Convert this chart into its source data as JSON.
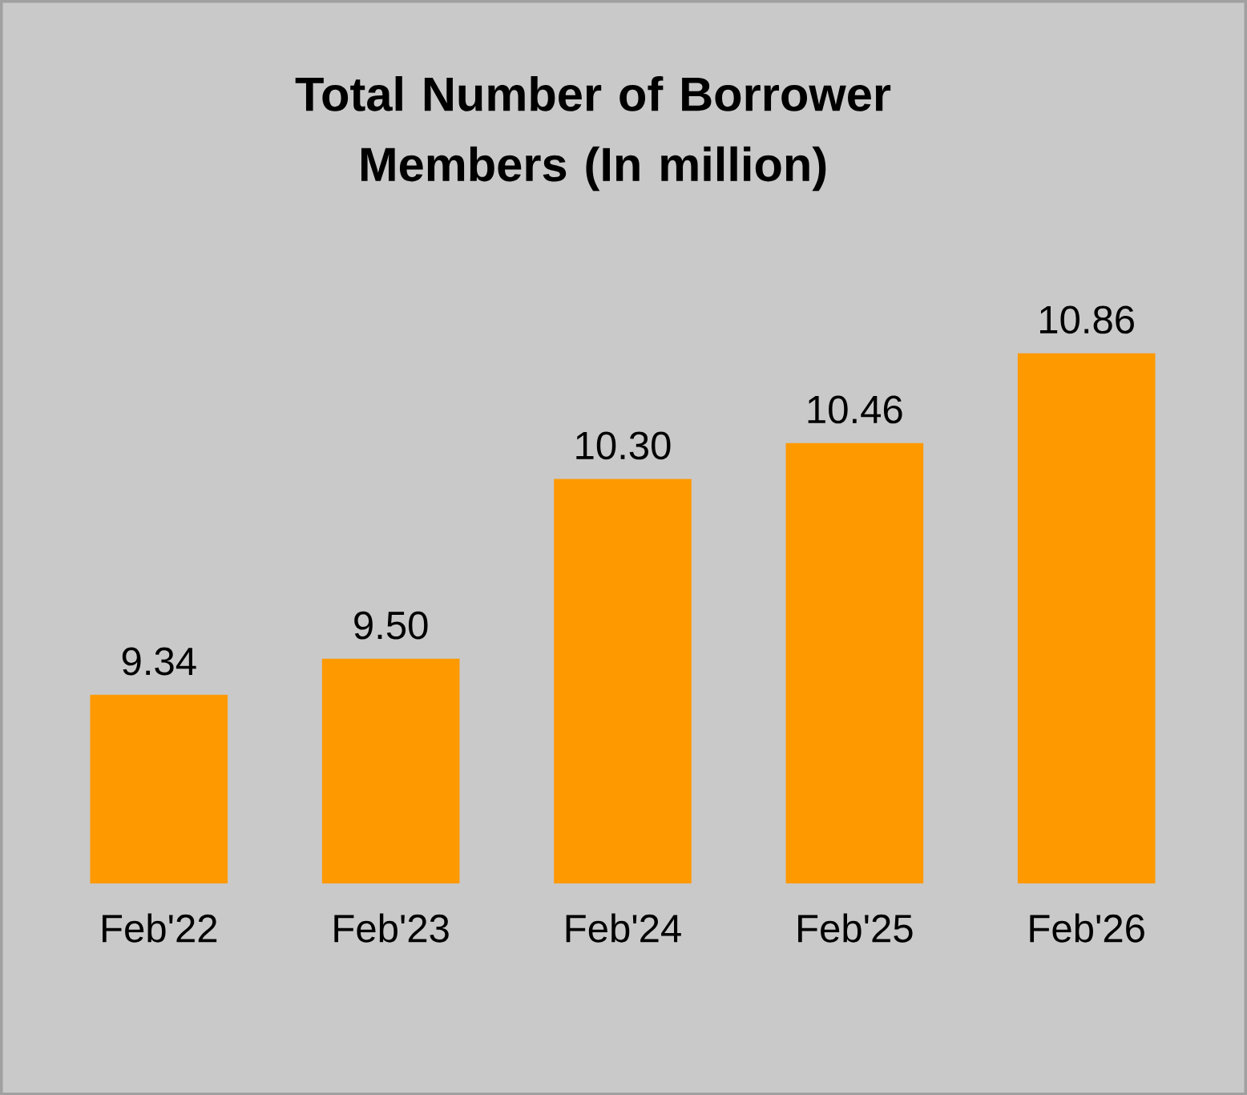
{
  "chart_data": {
    "type": "bar",
    "title": "Total Number of Borrower Members (In million)",
    "categories": [
      "Feb'22",
      "Feb'23",
      "Feb'24",
      "Feb'25",
      "Feb'26"
    ],
    "values": [
      9.34,
      9.5,
      10.3,
      10.46,
      10.86
    ],
    "value_labels": [
      "9.34",
      "9.50",
      "10.30",
      "10.46",
      "10.86"
    ],
    "color": "#ff9900",
    "ylim": [
      8.5,
      10.86
    ],
    "tick_labels": "x"
  }
}
